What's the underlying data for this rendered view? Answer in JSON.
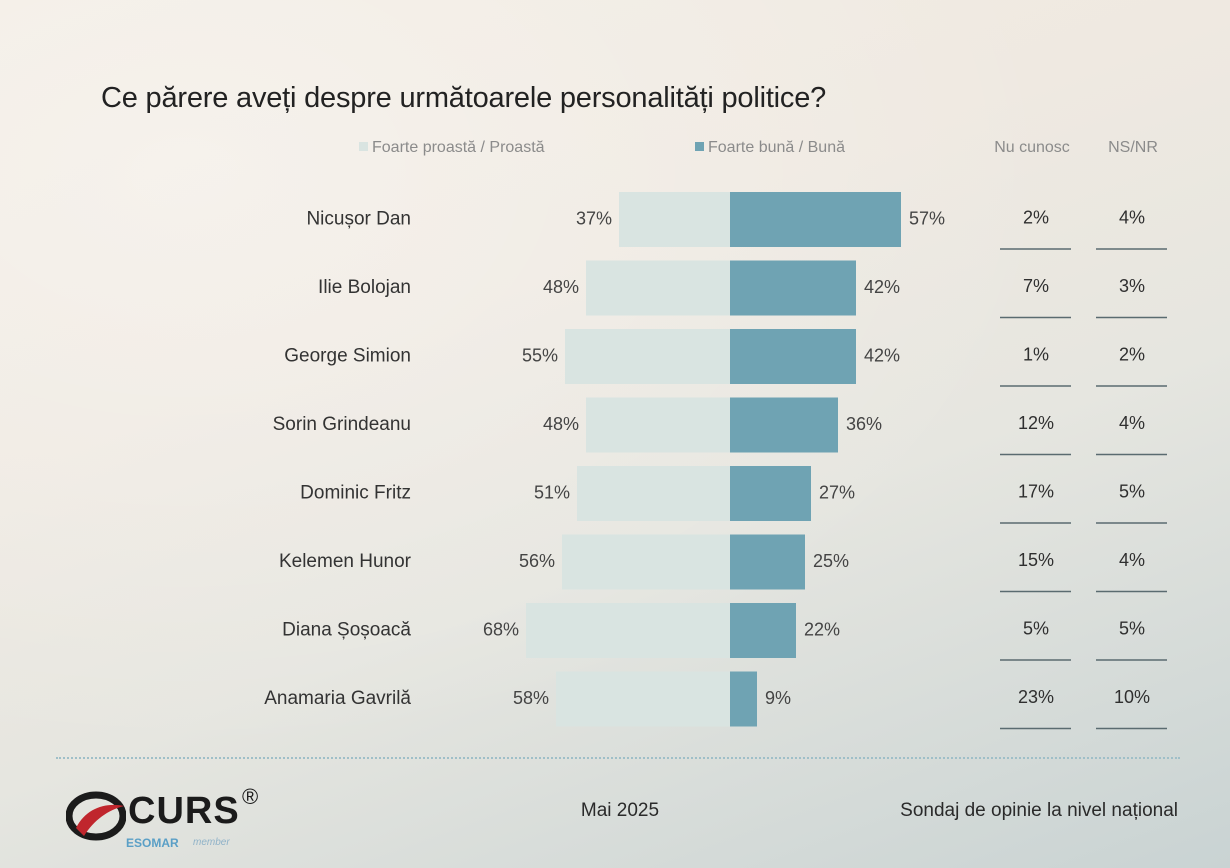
{
  "chart_data": {
    "type": "bar",
    "title": "Ce părere aveți despre următoarele personalități politice?",
    "legend": [
      {
        "name": "Foarte proastă / Proastă",
        "color": "#d9e4e1"
      },
      {
        "name": "Foarte bună / Bună",
        "color": "#6fa3b3"
      }
    ],
    "extra_columns": [
      "Nu cunosc",
      "NS/NR"
    ],
    "categories": [
      "Nicușor Dan",
      "Ilie Bolojan",
      "George Simion",
      "Sorin Grindeanu",
      "Dominic Fritz",
      "Kelemen Hunor",
      "Diana Șoșoacă",
      "Anamaria Gavrilă"
    ],
    "series": [
      {
        "name": "Foarte proastă / Proastă",
        "values": [
          37,
          48,
          55,
          48,
          51,
          56,
          68,
          58
        ]
      },
      {
        "name": "Foarte bună / Bună",
        "values": [
          57,
          42,
          42,
          36,
          27,
          25,
          22,
          9
        ]
      },
      {
        "name": "Nu cunosc",
        "values": [
          2,
          7,
          1,
          12,
          17,
          15,
          5,
          23
        ]
      },
      {
        "name": "NS/NR",
        "values": [
          4,
          3,
          2,
          4,
          5,
          4,
          5,
          10
        ]
      }
    ],
    "value_suffix": "%"
  },
  "footer": {
    "logo_text": "CURS",
    "logo_reg": "®",
    "logo_esomar": "ESOMAR",
    "logo_member": "member",
    "date": "Mai 2025",
    "source": "Sondaj de opinie la nivel național"
  }
}
